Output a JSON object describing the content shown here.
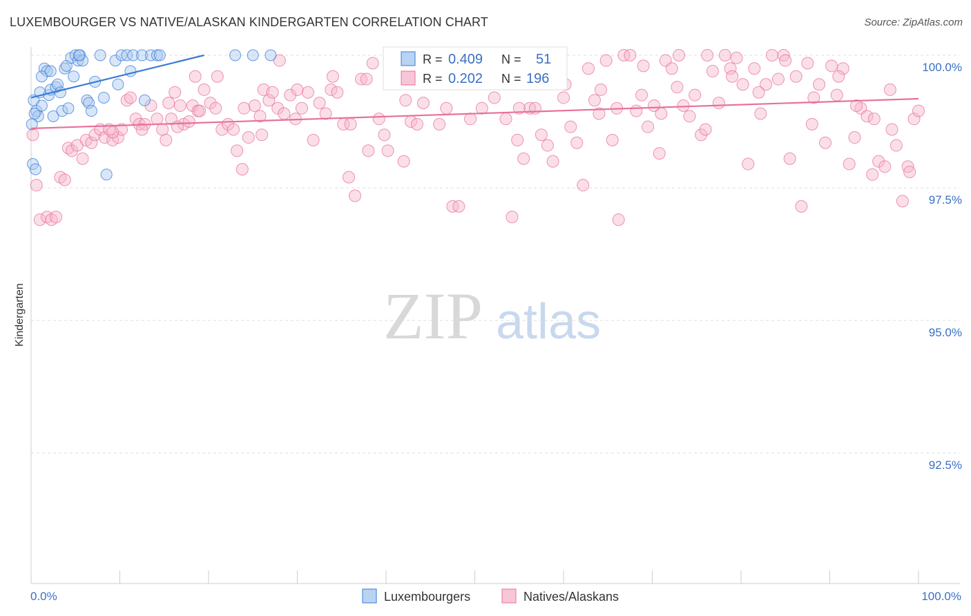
{
  "title": "LUXEMBOURGER VS NATIVE/ALASKAN KINDERGARTEN CORRELATION CHART",
  "source": "Source: ZipAtlas.com",
  "watermark": {
    "zip": "ZIP",
    "atlas": "atlas"
  },
  "colors": {
    "blue": "#3a7bd5",
    "blue_fill": "#a8c8f0",
    "pink": "#e8709a",
    "pink_fill": "#f6b8cc",
    "tick_text": "#3a6fc4",
    "grid": "#dddddd"
  },
  "legend": {
    "series1": {
      "r_label": "R =",
      "r_value": "0.409",
      "n_label": "N =",
      "n_value": "51"
    },
    "series2": {
      "r_label": "R =",
      "r_value": "0.202",
      "n_label": "N =",
      "n_value": "196"
    }
  },
  "chart_data": {
    "type": "scatter",
    "title": "LUXEMBOURGER VS NATIVE/ALASKAN KINDERGARTEN CORRELATION CHART",
    "xlabel": "",
    "ylabel": "Kindergarten",
    "xlim": [
      0,
      100
    ],
    "ylim": [
      90.0,
      100.4
    ],
    "x_tick_labels": [
      "0.0%",
      "100.0%"
    ],
    "y_ticks": [
      100.0,
      97.5,
      95.0,
      92.5
    ],
    "y_tick_labels": [
      "100.0%",
      "97.5%",
      "95.0%",
      "92.5%"
    ],
    "grid": true,
    "legend_position": "bottom-center",
    "series": [
      {
        "name": "Luxembourgers",
        "color": "#3a7bd5",
        "trend": {
          "x": [
            0,
            19.5
          ],
          "y": [
            99.2,
            100.0
          ]
        },
        "points": [
          [
            0.3,
            99.15
          ],
          [
            0.6,
            98.95
          ],
          [
            0.8,
            98.85
          ],
          [
            1.0,
            99.3
          ],
          [
            1.2,
            99.05
          ],
          [
            1.5,
            99.75
          ],
          [
            1.8,
            99.7
          ],
          [
            2.0,
            99.25
          ],
          [
            2.2,
            99.35
          ],
          [
            2.5,
            98.85
          ],
          [
            2.8,
            99.4
          ],
          [
            3.0,
            99.45
          ],
          [
            3.3,
            99.3
          ],
          [
            3.5,
            98.95
          ],
          [
            3.8,
            99.75
          ],
          [
            4.0,
            99.8
          ],
          [
            4.2,
            99.0
          ],
          [
            4.5,
            99.95
          ],
          [
            4.8,
            99.6
          ],
          [
            5.0,
            100.0
          ],
          [
            5.3,
            99.9
          ],
          [
            5.5,
            100.0
          ],
          [
            5.8,
            99.9
          ],
          [
            6.3,
            99.15
          ],
          [
            6.5,
            99.1
          ],
          [
            6.8,
            98.95
          ],
          [
            7.2,
            99.5
          ],
          [
            7.8,
            100.0
          ],
          [
            8.2,
            99.2
          ],
          [
            8.5,
            97.75
          ],
          [
            9.5,
            99.9
          ],
          [
            9.8,
            99.45
          ],
          [
            10.2,
            100.0
          ],
          [
            10.8,
            100.0
          ],
          [
            11.2,
            99.7
          ],
          [
            11.5,
            100.0
          ],
          [
            12.5,
            100.0
          ],
          [
            12.8,
            99.15
          ],
          [
            13.5,
            100.0
          ],
          [
            14.2,
            100.0
          ],
          [
            0.1,
            98.7
          ],
          [
            0.2,
            97.95
          ],
          [
            0.5,
            97.85
          ],
          [
            1.2,
            99.6
          ],
          [
            2.2,
            99.7
          ],
          [
            23.0,
            100.0
          ],
          [
            25.0,
            100.0
          ],
          [
            27.0,
            100.0
          ],
          [
            5.4,
            100.0
          ],
          [
            14.5,
            100.0
          ],
          [
            0.4,
            98.9
          ]
        ]
      },
      {
        "name": "Natives/Alaskans",
        "color": "#e8709a",
        "trend": {
          "x": [
            0,
            100
          ],
          "y": [
            98.62,
            99.18
          ]
        },
        "points": [
          [
            0.2,
            98.5
          ],
          [
            0.6,
            97.55
          ],
          [
            1.0,
            96.9
          ],
          [
            1.8,
            96.95
          ],
          [
            2.3,
            96.9
          ],
          [
            2.8,
            96.95
          ],
          [
            3.3,
            97.7
          ],
          [
            3.8,
            97.65
          ],
          [
            4.2,
            98.25
          ],
          [
            4.6,
            98.2
          ],
          [
            5.2,
            98.3
          ],
          [
            5.8,
            98.05
          ],
          [
            6.2,
            98.4
          ],
          [
            6.8,
            98.35
          ],
          [
            7.2,
            98.5
          ],
          [
            7.8,
            98.6
          ],
          [
            8.3,
            98.45
          ],
          [
            8.8,
            98.6
          ],
          [
            9.2,
            98.4
          ],
          [
            9.8,
            98.45
          ],
          [
            10.2,
            98.6
          ],
          [
            10.8,
            99.15
          ],
          [
            11.2,
            99.2
          ],
          [
            11.8,
            98.8
          ],
          [
            12.2,
            98.7
          ],
          [
            12.8,
            98.7
          ],
          [
            13.5,
            99.05
          ],
          [
            14.2,
            98.8
          ],
          [
            14.8,
            98.6
          ],
          [
            15.2,
            98.4
          ],
          [
            15.8,
            98.8
          ],
          [
            16.2,
            99.3
          ],
          [
            16.8,
            99.05
          ],
          [
            17.2,
            98.7
          ],
          [
            17.8,
            98.75
          ],
          [
            18.2,
            99.05
          ],
          [
            18.8,
            98.95
          ],
          [
            19.5,
            99.35
          ],
          [
            20.2,
            99.1
          ],
          [
            20.8,
            99.0
          ],
          [
            21.5,
            98.6
          ],
          [
            22.2,
            98.7
          ],
          [
            22.8,
            98.6
          ],
          [
            23.2,
            98.2
          ],
          [
            23.8,
            97.85
          ],
          [
            24.5,
            98.45
          ],
          [
            25.2,
            99.05
          ],
          [
            25.8,
            98.85
          ],
          [
            26.2,
            99.35
          ],
          [
            26.8,
            99.15
          ],
          [
            27.2,
            99.3
          ],
          [
            27.8,
            99.0
          ],
          [
            28.5,
            98.9
          ],
          [
            29.2,
            99.25
          ],
          [
            29.8,
            98.8
          ],
          [
            30.5,
            99.0
          ],
          [
            31.2,
            99.3
          ],
          [
            31.8,
            98.4
          ],
          [
            32.5,
            99.1
          ],
          [
            33.2,
            98.9
          ],
          [
            33.8,
            99.35
          ],
          [
            34.5,
            99.3
          ],
          [
            35.2,
            98.7
          ],
          [
            35.8,
            97.7
          ],
          [
            36.5,
            97.35
          ],
          [
            37.2,
            99.55
          ],
          [
            37.8,
            99.55
          ],
          [
            38.5,
            99.85
          ],
          [
            39.2,
            98.8
          ],
          [
            39.8,
            98.5
          ],
          [
            40.2,
            98.2
          ],
          [
            40.8,
            99.6
          ],
          [
            41.5,
            99.75
          ],
          [
            42.2,
            99.15
          ],
          [
            42.8,
            98.75
          ],
          [
            43.5,
            98.7
          ],
          [
            44.2,
            99.1
          ],
          [
            44.8,
            99.55
          ],
          [
            45.5,
            99.85
          ],
          [
            46.2,
            99.6
          ],
          [
            46.8,
            99.0
          ],
          [
            47.5,
            97.15
          ],
          [
            48.2,
            97.15
          ],
          [
            48.8,
            99.75
          ],
          [
            49.5,
            98.8
          ],
          [
            50.2,
            99.55
          ],
          [
            50.8,
            99.0
          ],
          [
            51.5,
            99.6
          ],
          [
            52.2,
            99.2
          ],
          [
            52.8,
            99.65
          ],
          [
            53.5,
            98.8
          ],
          [
            54.2,
            96.95
          ],
          [
            54.8,
            98.4
          ],
          [
            55.5,
            98.05
          ],
          [
            56.2,
            99.0
          ],
          [
            56.8,
            99.0
          ],
          [
            57.5,
            98.5
          ],
          [
            58.2,
            98.3
          ],
          [
            58.8,
            98.0
          ],
          [
            59.5,
            99.55
          ],
          [
            60.2,
            99.45
          ],
          [
            60.8,
            98.65
          ],
          [
            61.5,
            98.35
          ],
          [
            62.2,
            97.55
          ],
          [
            62.8,
            99.75
          ],
          [
            63.5,
            99.15
          ],
          [
            64.2,
            99.35
          ],
          [
            64.8,
            99.9
          ],
          [
            65.5,
            98.4
          ],
          [
            66.2,
            96.9
          ],
          [
            66.8,
            100.0
          ],
          [
            67.5,
            100.0
          ],
          [
            68.2,
            98.95
          ],
          [
            68.8,
            99.25
          ],
          [
            69.5,
            98.65
          ],
          [
            70.2,
            99.05
          ],
          [
            70.8,
            98.15
          ],
          [
            71.5,
            99.9
          ],
          [
            72.2,
            99.75
          ],
          [
            72.8,
            99.4
          ],
          [
            73.5,
            99.05
          ],
          [
            74.2,
            98.85
          ],
          [
            74.8,
            99.25
          ],
          [
            75.5,
            98.5
          ],
          [
            76.2,
            100.0
          ],
          [
            76.8,
            99.7
          ],
          [
            77.5,
            99.1
          ],
          [
            78.2,
            100.0
          ],
          [
            78.8,
            99.75
          ],
          [
            79.5,
            99.95
          ],
          [
            80.2,
            99.45
          ],
          [
            80.8,
            97.95
          ],
          [
            81.5,
            99.75
          ],
          [
            82.2,
            98.9
          ],
          [
            82.8,
            99.45
          ],
          [
            83.5,
            100.0
          ],
          [
            84.2,
            99.55
          ],
          [
            84.8,
            100.0
          ],
          [
            85.5,
            98.05
          ],
          [
            86.2,
            99.6
          ],
          [
            86.8,
            97.15
          ],
          [
            87.5,
            99.85
          ],
          [
            88.2,
            99.2
          ],
          [
            88.8,
            99.45
          ],
          [
            89.5,
            98.35
          ],
          [
            90.2,
            99.8
          ],
          [
            90.8,
            99.25
          ],
          [
            91.5,
            99.75
          ],
          [
            92.2,
            97.95
          ],
          [
            92.8,
            98.45
          ],
          [
            93.5,
            99.0
          ],
          [
            94.2,
            98.85
          ],
          [
            94.8,
            97.75
          ],
          [
            95.5,
            98.0
          ],
          [
            96.2,
            97.9
          ],
          [
            96.8,
            99.35
          ],
          [
            97.5,
            98.3
          ],
          [
            98.2,
            97.25
          ],
          [
            98.8,
            97.9
          ],
          [
            99.5,
            98.8
          ],
          [
            100.0,
            98.95
          ],
          [
            15.5,
            99.1
          ],
          [
            18.5,
            99.6
          ],
          [
            21.0,
            99.6
          ],
          [
            24.0,
            99.0
          ],
          [
            26.0,
            98.5
          ],
          [
            28.0,
            99.9
          ],
          [
            30.0,
            99.35
          ],
          [
            34.0,
            99.6
          ],
          [
            36.0,
            98.7
          ],
          [
            38.0,
            98.2
          ],
          [
            42.0,
            98.0
          ],
          [
            46.0,
            98.7
          ],
          [
            52.0,
            100.0
          ],
          [
            55.0,
            99.0
          ],
          [
            58.0,
            100.0
          ],
          [
            60.0,
            99.2
          ],
          [
            64.0,
            98.9
          ],
          [
            66.0,
            99.0
          ],
          [
            69.0,
            99.8
          ],
          [
            71.0,
            98.9
          ],
          [
            73.0,
            100.0
          ],
          [
            76.0,
            98.6
          ],
          [
            79.0,
            99.6
          ],
          [
            82.0,
            99.3
          ],
          [
            85.0,
            99.9
          ],
          [
            88.0,
            98.7
          ],
          [
            91.0,
            99.6
          ],
          [
            93.0,
            99.05
          ],
          [
            95.0,
            98.8
          ],
          [
            97.0,
            98.6
          ],
          [
            99.0,
            97.8
          ],
          [
            9.2,
            98.55
          ],
          [
            12.5,
            98.6
          ],
          [
            16.5,
            98.65
          ],
          [
            19.0,
            98.95
          ]
        ]
      }
    ]
  }
}
